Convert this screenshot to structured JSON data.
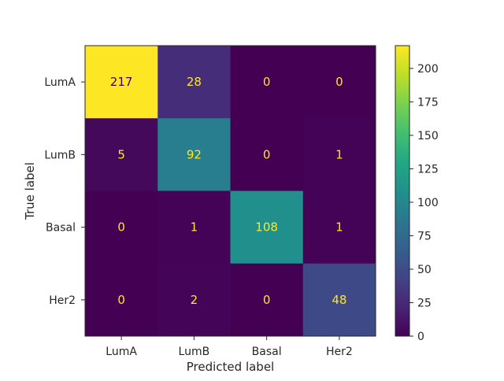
{
  "chart_data": {
    "type": "heatmap",
    "title": "",
    "xlabel": "Predicted label",
    "ylabel": "True label",
    "x_categories": [
      "LumA",
      "LumB",
      "Basal",
      "Her2"
    ],
    "y_categories": [
      "LumA",
      "LumB",
      "Basal",
      "Her2"
    ],
    "matrix": [
      [
        217,
        28,
        0,
        0
      ],
      [
        5,
        92,
        0,
        1
      ],
      [
        0,
        1,
        108,
        1
      ],
      [
        0,
        2,
        0,
        48
      ]
    ],
    "colormap": "viridis",
    "value_range": [
      0,
      217
    ],
    "colorbar_ticks": [
      0,
      25,
      50,
      75,
      100,
      125,
      150,
      175,
      200
    ],
    "text_color_low": "#fde725",
    "text_color_high": "#440154"
  }
}
